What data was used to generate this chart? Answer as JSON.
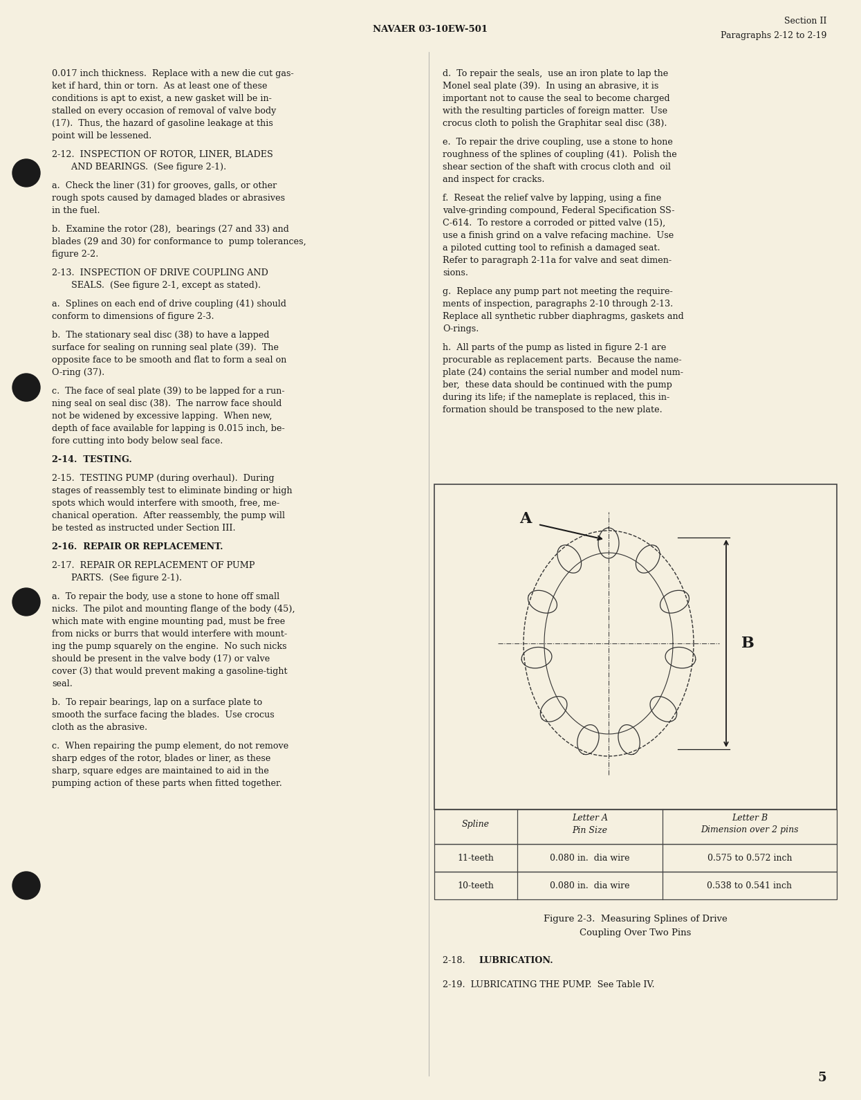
{
  "bg_color": "#f5f0e0",
  "text_color": "#1a1a1a",
  "header_center": "NAVAER 03-10EW-501",
  "header_right_line1": "Section II",
  "header_right_line2": "Paragraphs 2-12 to 2-19",
  "page_number": "5",
  "table_rows": [
    [
      "11-teeth",
      "0.080 in.  dia wire",
      "0.575 to 0.572 inch"
    ],
    [
      "10-teeth",
      "0.080 in.  dia wire",
      "0.538 to 0.541 inch"
    ]
  ]
}
